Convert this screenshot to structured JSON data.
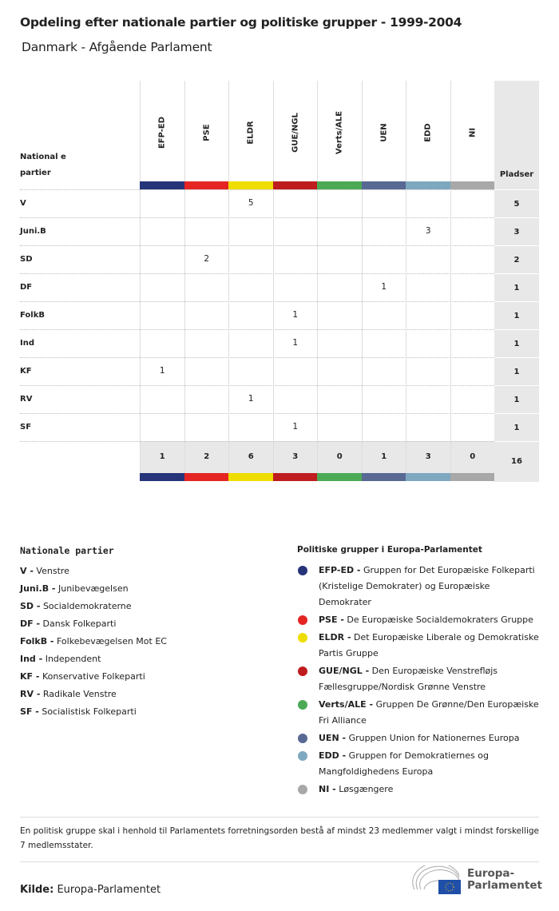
{
  "title": "Opdeling efter nationale partier og politiske grupper - 1999-2004",
  "subtitle": "Danmark - Afgående Parlament",
  "table": {
    "row_header": "National e partier",
    "seats_header": "Pladser",
    "groups": [
      {
        "code": "EFP-ED",
        "color": "#263479"
      },
      {
        "code": "PSE",
        "color": "#e42524"
      },
      {
        "code": "ELDR",
        "color": "#eedd00"
      },
      {
        "code": "GUE/NGL",
        "color": "#be1c1f"
      },
      {
        "code": "Verts/ALE",
        "color": "#4caa55"
      },
      {
        "code": "UEN",
        "color": "#586993"
      },
      {
        "code": "EDD",
        "color": "#7ea8c0"
      },
      {
        "code": "NI",
        "color": "#a8a8a8"
      }
    ],
    "rows": [
      {
        "party": "V",
        "values": [
          "",
          "",
          "5",
          "",
          "",
          "",
          "",
          ""
        ],
        "seats": "5"
      },
      {
        "party": "Juni.B",
        "values": [
          "",
          "",
          "",
          "",
          "",
          "",
          "3",
          ""
        ],
        "seats": "3"
      },
      {
        "party": "SD",
        "values": [
          "",
          "2",
          "",
          "",
          "",
          "",
          "",
          ""
        ],
        "seats": "2"
      },
      {
        "party": "DF",
        "values": [
          "",
          "",
          "",
          "",
          "",
          "1",
          "",
          ""
        ],
        "seats": "1"
      },
      {
        "party": "FolkB",
        "values": [
          "",
          "",
          "",
          "1",
          "",
          "",
          "",
          ""
        ],
        "seats": "1"
      },
      {
        "party": "Ind",
        "values": [
          "",
          "",
          "",
          "1",
          "",
          "",
          "",
          ""
        ],
        "seats": "1"
      },
      {
        "party": "KF",
        "values": [
          "1",
          "",
          "",
          "",
          "",
          "",
          "",
          ""
        ],
        "seats": "1"
      },
      {
        "party": "RV",
        "values": [
          "",
          "",
          "1",
          "",
          "",
          "",
          "",
          ""
        ],
        "seats": "1"
      },
      {
        "party": "SF",
        "values": [
          "",
          "",
          "",
          "1",
          "",
          "",
          "",
          ""
        ],
        "seats": "1"
      }
    ],
    "totals": [
      "1",
      "2",
      "6",
      "3",
      "0",
      "1",
      "3",
      "0"
    ],
    "total_seats": "16"
  },
  "legend_parties": {
    "title": "Nationale partier",
    "items": [
      {
        "abbr": "V -",
        "name": "Venstre"
      },
      {
        "abbr": "Juni.B -",
        "name": "Junibevægelsen"
      },
      {
        "abbr": "SD -",
        "name": "Socialdemokraterne"
      },
      {
        "abbr": "DF -",
        "name": "Dansk Folkeparti"
      },
      {
        "abbr": "FolkB -",
        "name": "Folkebevægelsen Mot EC"
      },
      {
        "abbr": "Ind -",
        "name": "Independent"
      },
      {
        "abbr": "KF -",
        "name": "Konservative Folkeparti"
      },
      {
        "abbr": "RV -",
        "name": "Radikale Venstre"
      },
      {
        "abbr": "SF -",
        "name": "Socialistisk Folkeparti"
      }
    ]
  },
  "legend_groups": {
    "title": "Politiske grupper i Europa-Parlamentet",
    "items": [
      {
        "abbr": "EFP-ED -",
        "name": "Gruppen for Det Europæiske Folkeparti (Kristelige Demokrater) og Europæiske Demokrater"
      },
      {
        "abbr": "PSE -",
        "name": "De Europæiske Socialdemokraters Gruppe"
      },
      {
        "abbr": "ELDR -",
        "name": "Det Europæiske Liberale og Demokratiske Partis Gruppe"
      },
      {
        "abbr": "GUE/NGL -",
        "name": "Den Europæiske Venstrefløjs Fællesgruppe/Nordisk Grønne Venstre"
      },
      {
        "abbr": "Verts/ALE -",
        "name": "Gruppen De Grønne/Den Europæiske Fri Alliance"
      },
      {
        "abbr": "UEN -",
        "name": "Gruppen Union for Nationernes Europa"
      },
      {
        "abbr": "EDD -",
        "name": "Gruppen for Demokratiernes og Mangfoldighedens Europa"
      },
      {
        "abbr": "NI -",
        "name": "Løsgængere"
      }
    ]
  },
  "note": "En politisk gruppe skal i henhold til Parlamentets forretningsorden bestå af mindst 23 medlemmer valgt i mindst forskellige 7 medlemsstater.",
  "source": {
    "label": "Kilde:",
    "value": "Europa-Parlamentet"
  },
  "logo": {
    "line1": "Europa-",
    "line2": "Parlamentet"
  }
}
